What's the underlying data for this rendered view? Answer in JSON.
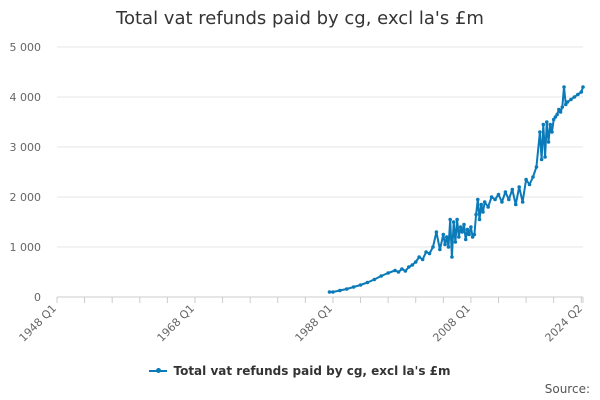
{
  "chart_data": {
    "type": "line",
    "title": "Total vat refunds paid by cg, excl la's £m",
    "xlabel": "",
    "ylabel": "",
    "ylim": [
      0,
      5000
    ],
    "yticks": [
      0,
      1000,
      2000,
      3000,
      4000,
      5000
    ],
    "ytick_labels": [
      "0",
      "1 000",
      "2 000",
      "3 000",
      "4 000",
      "5 000"
    ],
    "xlim": [
      1948.0,
      2024.25
    ],
    "xticks": [
      1948.0,
      1968.0,
      1988.0,
      2008.0,
      2024.25
    ],
    "xtick_labels": [
      "1948 Q1",
      "1968 Q1",
      "1988 Q1",
      "2008 Q1",
      "2024 Q2"
    ],
    "grid": true,
    "legend_position": "bottom",
    "color": "#0a7ab8",
    "series": [
      {
        "name": "Total vat refunds paid by cg, excl la's £m",
        "x": [
          1987.5,
          1988,
          1989,
          1990,
          1991,
          1992,
          1993,
          1994,
          1995,
          1996,
          1997,
          1997.5,
          1998,
          1998.5,
          1999,
          1999.5,
          2000,
          2000.5,
          2001,
          2001.5,
          2002,
          2002.5,
          2003,
          2003.5,
          2004,
          2004.25,
          2004.5,
          2004.75,
          2005,
          2005.25,
          2005.5,
          2005.75,
          2006,
          2006.25,
          2006.5,
          2006.75,
          2007,
          2007.25,
          2007.5,
          2007.75,
          2008,
          2008.25,
          2008.5,
          2008.75,
          2009,
          2009.25,
          2009.5,
          2009.75,
          2010,
          2010.5,
          2011,
          2011.5,
          2012,
          2012.5,
          2013,
          2013.5,
          2014,
          2014.5,
          2015,
          2015.5,
          2016,
          2016.5,
          2017,
          2017.5,
          2018,
          2018.25,
          2018.5,
          2018.75,
          2019,
          2019.25,
          2019.5,
          2019.75,
          2020,
          2020.25,
          2020.5,
          2020.75,
          2021,
          2021.25,
          2021.5,
          2021.75,
          2022,
          2022.5,
          2023,
          2023.5,
          2024,
          2024.25
        ],
        "values": [
          100,
          100,
          130,
          160,
          200,
          240,
          290,
          350,
          420,
          480,
          530,
          500,
          560,
          520,
          600,
          640,
          700,
          800,
          750,
          900,
          870,
          1000,
          1300,
          950,
          1250,
          1050,
          1200,
          1000,
          1550,
          800,
          1500,
          1100,
          1550,
          1200,
          1400,
          1300,
          1450,
          1150,
          1350,
          1250,
          1400,
          1200,
          1250,
          1650,
          1950,
          1550,
          1850,
          1700,
          1900,
          1800,
          2000,
          1950,
          2050,
          1900,
          2100,
          1950,
          2150,
          1850,
          2200,
          1900,
          2350,
          2250,
          2400,
          2600,
          3300,
          2750,
          3450,
          2800,
          3500,
          3100,
          3450,
          3300,
          3550,
          3600,
          3650,
          3750,
          3700,
          3800,
          4200,
          3850,
          3900,
          3950,
          4000,
          4050,
          4100,
          4200
        ]
      }
    ]
  },
  "source_label": "Source:"
}
